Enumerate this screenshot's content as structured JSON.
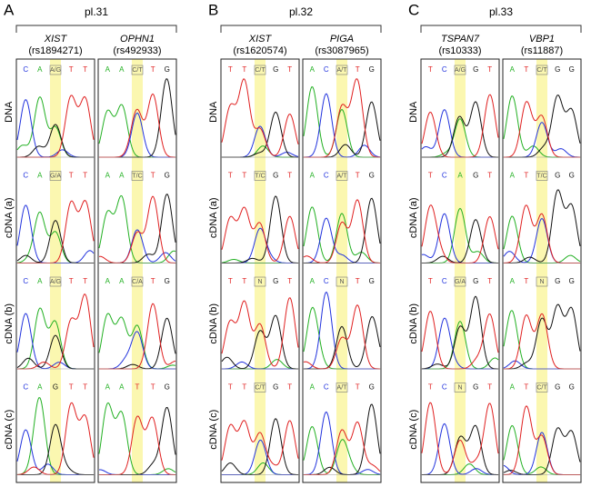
{
  "panels": [
    {
      "letter": "A",
      "title": "pl.31",
      "genes": [
        {
          "name": "XIST",
          "rs": "(rs1894271)",
          "rows": [
            [
              "C",
              "A",
              "A/G",
              "T",
              "T"
            ],
            [
              "C",
              "A",
              "G/A",
              "T",
              "T"
            ],
            [
              "C",
              "A",
              "A/G",
              "T",
              "T"
            ],
            [
              "C",
              "A",
              "G",
              "T",
              "T"
            ]
          ]
        },
        {
          "name": "OPHN1",
          "rs": "(rs492933)",
          "rows": [
            [
              "A",
              "A",
              "C/T",
              "T",
              "G"
            ],
            [
              "A",
              "A",
              "T/C",
              "T",
              "G"
            ],
            [
              "A",
              "A",
              "C/A",
              "T",
              "G"
            ],
            [
              "A",
              "A",
              "T",
              "T",
              "G"
            ]
          ]
        }
      ]
    },
    {
      "letter": "B",
      "title": "pl.32",
      "genes": [
        {
          "name": "XIST",
          "rs": "(rs1620574)",
          "rows": [
            [
              "T",
              "T",
              "C/T",
              "G",
              "T"
            ],
            [
              "T",
              "T",
              "T/C",
              "G",
              "T"
            ],
            [
              "T",
              "T",
              "N",
              "G",
              "T"
            ],
            [
              "T",
              "T",
              "C/T",
              "G",
              "T"
            ]
          ]
        },
        {
          "name": "PIGA",
          "rs": "(rs3087965)",
          "rows": [
            [
              "A",
              "C",
              "A/T",
              "T",
              "G"
            ],
            [
              "A",
              "C",
              "A/T",
              "T",
              "G"
            ],
            [
              "A",
              "C",
              "N",
              "T",
              "G"
            ],
            [
              "A",
              "C",
              "A/T",
              "T",
              "G"
            ]
          ]
        }
      ]
    },
    {
      "letter": "C",
      "title": "pl.33",
      "genes": [
        {
          "name": "TSPAN7",
          "rs": "(rs10333)",
          "rows": [
            [
              "T",
              "C",
              "A/G",
              "G",
              "T"
            ],
            [
              "T",
              "C",
              "A",
              "G",
              "T"
            ],
            [
              "T",
              "C",
              "G/A",
              "G",
              "T"
            ],
            [
              "T",
              "C",
              "N",
              "G",
              "T"
            ]
          ]
        },
        {
          "name": "VBP1",
          "rs": "(rs11887)",
          "rows": [
            [
              "A",
              "T",
              "C/T",
              "G",
              "G"
            ],
            [
              "A",
              "T",
              "T/C",
              "G",
              "G"
            ],
            [
              "A",
              "T",
              "N",
              "G",
              "G"
            ],
            [
              "A",
              "T",
              "C/T",
              "G",
              "G"
            ]
          ]
        }
      ]
    }
  ],
  "row_labels": [
    "DNA",
    "cDNA (a)",
    "cDNA (b)",
    "cDNA (c)"
  ]
}
